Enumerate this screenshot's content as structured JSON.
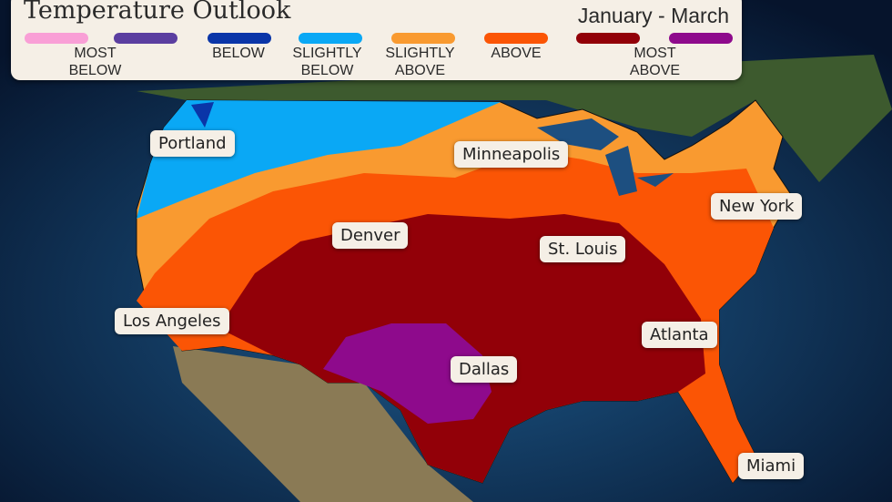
{
  "legend": {
    "title": "Temperature Outlook",
    "period": "January - March",
    "categories": [
      {
        "label": "MOST BELOW",
        "colors": [
          "#f99fd6",
          "#5b3ea0"
        ]
      },
      {
        "label": "BELOW",
        "colors": [
          "#0a35a8"
        ]
      },
      {
        "label": "SLIGHTLY BELOW",
        "colors": [
          "#0aa8f5"
        ]
      },
      {
        "label": "SLIGHTLY ABOVE",
        "colors": [
          "#f99a30"
        ]
      },
      {
        "label": "ABOVE",
        "colors": [
          "#fb5505"
        ]
      },
      {
        "label": "MOST ABOVE",
        "colors": [
          "#920008",
          "#8e0a8c"
        ]
      }
    ]
  },
  "cities": [
    "Portland",
    "Minneapolis",
    "New York",
    "Denver",
    "St. Louis",
    "Los Angeles",
    "Atlanta",
    "Dallas",
    "Miami"
  ]
}
